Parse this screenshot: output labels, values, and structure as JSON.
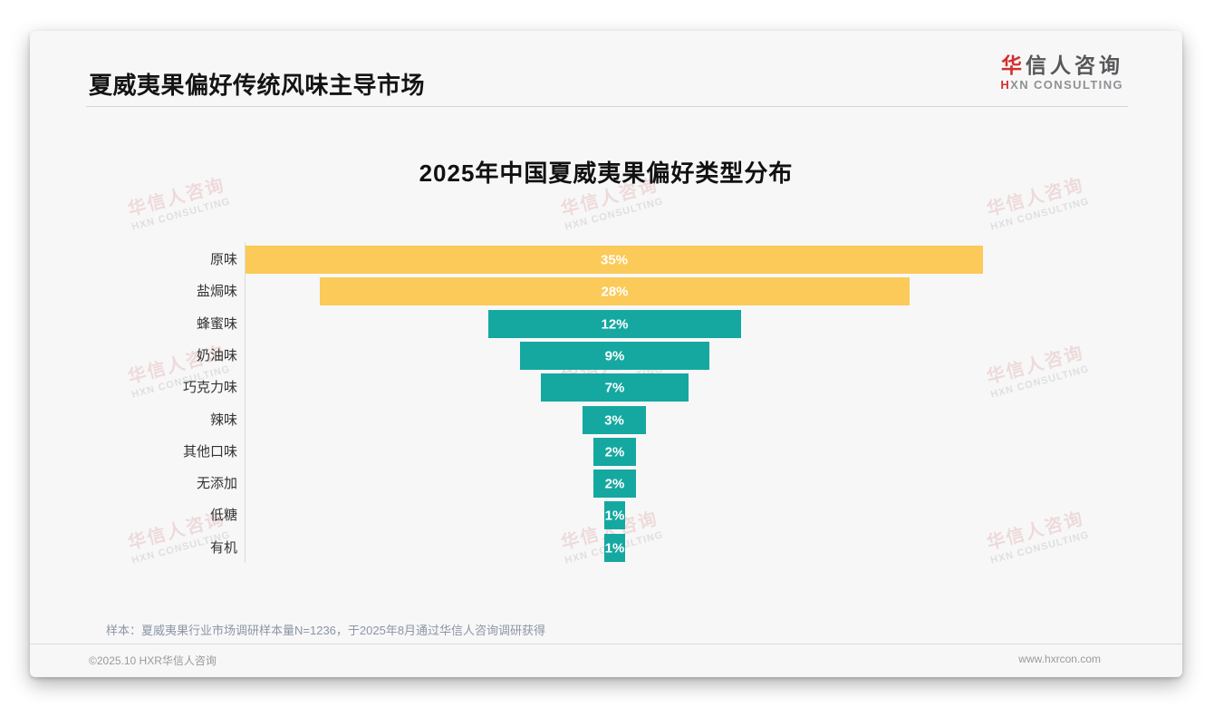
{
  "page": {
    "header": {
      "title": "夏威夷果偏好传统风味主导市场"
    },
    "logo": {
      "cn_first": "华",
      "cn_rest": "信人咨询",
      "en_first": "H",
      "en_rest": "XN CONSULTING"
    },
    "watermark": {
      "line1": "华信人咨询",
      "line2": "HXN CONSULTING"
    },
    "footnote": "样本：夏威夷果行业市场调研样本量N=1236，于2025年8月通过华信人咨询调研获得",
    "footer": {
      "left": "©2025.10 HXR华信人咨询",
      "right": "www.hxrcon.com"
    }
  },
  "chart_data": {
    "type": "bar",
    "subtype": "centered-horizontal-funnel",
    "title": "2025年中国夏威夷果偏好类型分布",
    "categories": [
      "原味",
      "盐焗味",
      "蜂蜜味",
      "奶油味",
      "巧克力味",
      "辣味",
      "其他口味",
      "无添加",
      "低糖",
      "有机"
    ],
    "values": [
      35,
      28,
      12,
      9,
      7,
      3,
      2,
      2,
      1,
      1
    ],
    "labels": [
      "35%",
      "28%",
      "12%",
      "9%",
      "7%",
      "3%",
      "2%",
      "2%",
      "1%",
      "1%"
    ],
    "unit": "%",
    "xlim": [
      0,
      35
    ],
    "bar_colors": [
      "#fbca58",
      "#fbca58",
      "#15a8a0",
      "#15a8a0",
      "#15a8a0",
      "#15a8a0",
      "#15a8a0",
      "#15a8a0",
      "#15a8a0",
      "#15a8a0"
    ],
    "colors": {
      "highlight": "#fbca58",
      "default": "#15a8a0",
      "value_label": "#ffffff"
    },
    "legend": "none",
    "grid": "off",
    "layout_hint": "bars centered on vertical midline, category labels right-aligned left of axis line"
  }
}
